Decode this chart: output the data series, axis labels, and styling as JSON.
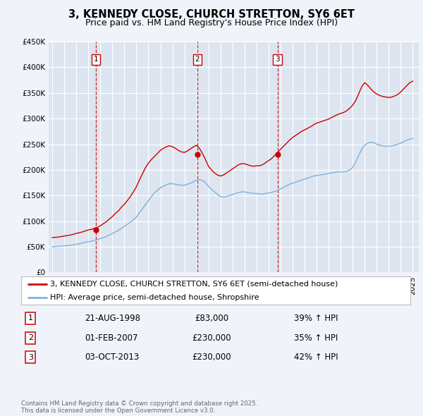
{
  "title": "3, KENNEDY CLOSE, CHURCH STRETTON, SY6 6ET",
  "subtitle": "Price paid vs. HM Land Registry's House Price Index (HPI)",
  "ylim": [
    0,
    450000
  ],
  "yticks": [
    0,
    50000,
    100000,
    150000,
    200000,
    250000,
    300000,
    350000,
    400000,
    450000
  ],
  "ytick_labels": [
    "£0",
    "£50K",
    "£100K",
    "£150K",
    "£200K",
    "£250K",
    "£300K",
    "£350K",
    "£400K",
    "£450K"
  ],
  "xlim_start": 1994.7,
  "xlim_end": 2025.5,
  "background_color": "#f0f4fa",
  "plot_bg_color": "#dde6f0",
  "grid_color": "#ffffff",
  "red_line_color": "#cc0000",
  "blue_line_color": "#7fb0d8",
  "legend_label_red": "3, KENNEDY CLOSE, CHURCH STRETTON, SY6 6ET (semi-detached house)",
  "legend_label_blue": "HPI: Average price, semi-detached house, Shropshire",
  "sale_dates": [
    1998.64,
    2007.08,
    2013.75
  ],
  "sale_prices": [
    83000,
    230000,
    230000
  ],
  "sale_labels": [
    "1",
    "2",
    "3"
  ],
  "sale_date_labels": [
    "21-AUG-1998",
    "01-FEB-2007",
    "03-OCT-2013"
  ],
  "sale_price_labels": [
    "£83,000",
    "£230,000",
    "£230,000"
  ],
  "sale_hpi_labels": [
    "39% ↑ HPI",
    "35% ↑ HPI",
    "42% ↑ HPI"
  ],
  "footer_text": "Contains HM Land Registry data © Crown copyright and database right 2025.\nThis data is licensed under the Open Government Licence v3.0.",
  "title_fontsize": 10.5,
  "subtitle_fontsize": 9,
  "tick_fontsize": 7.5,
  "legend_fontsize": 8,
  "table_fontsize": 8.5
}
